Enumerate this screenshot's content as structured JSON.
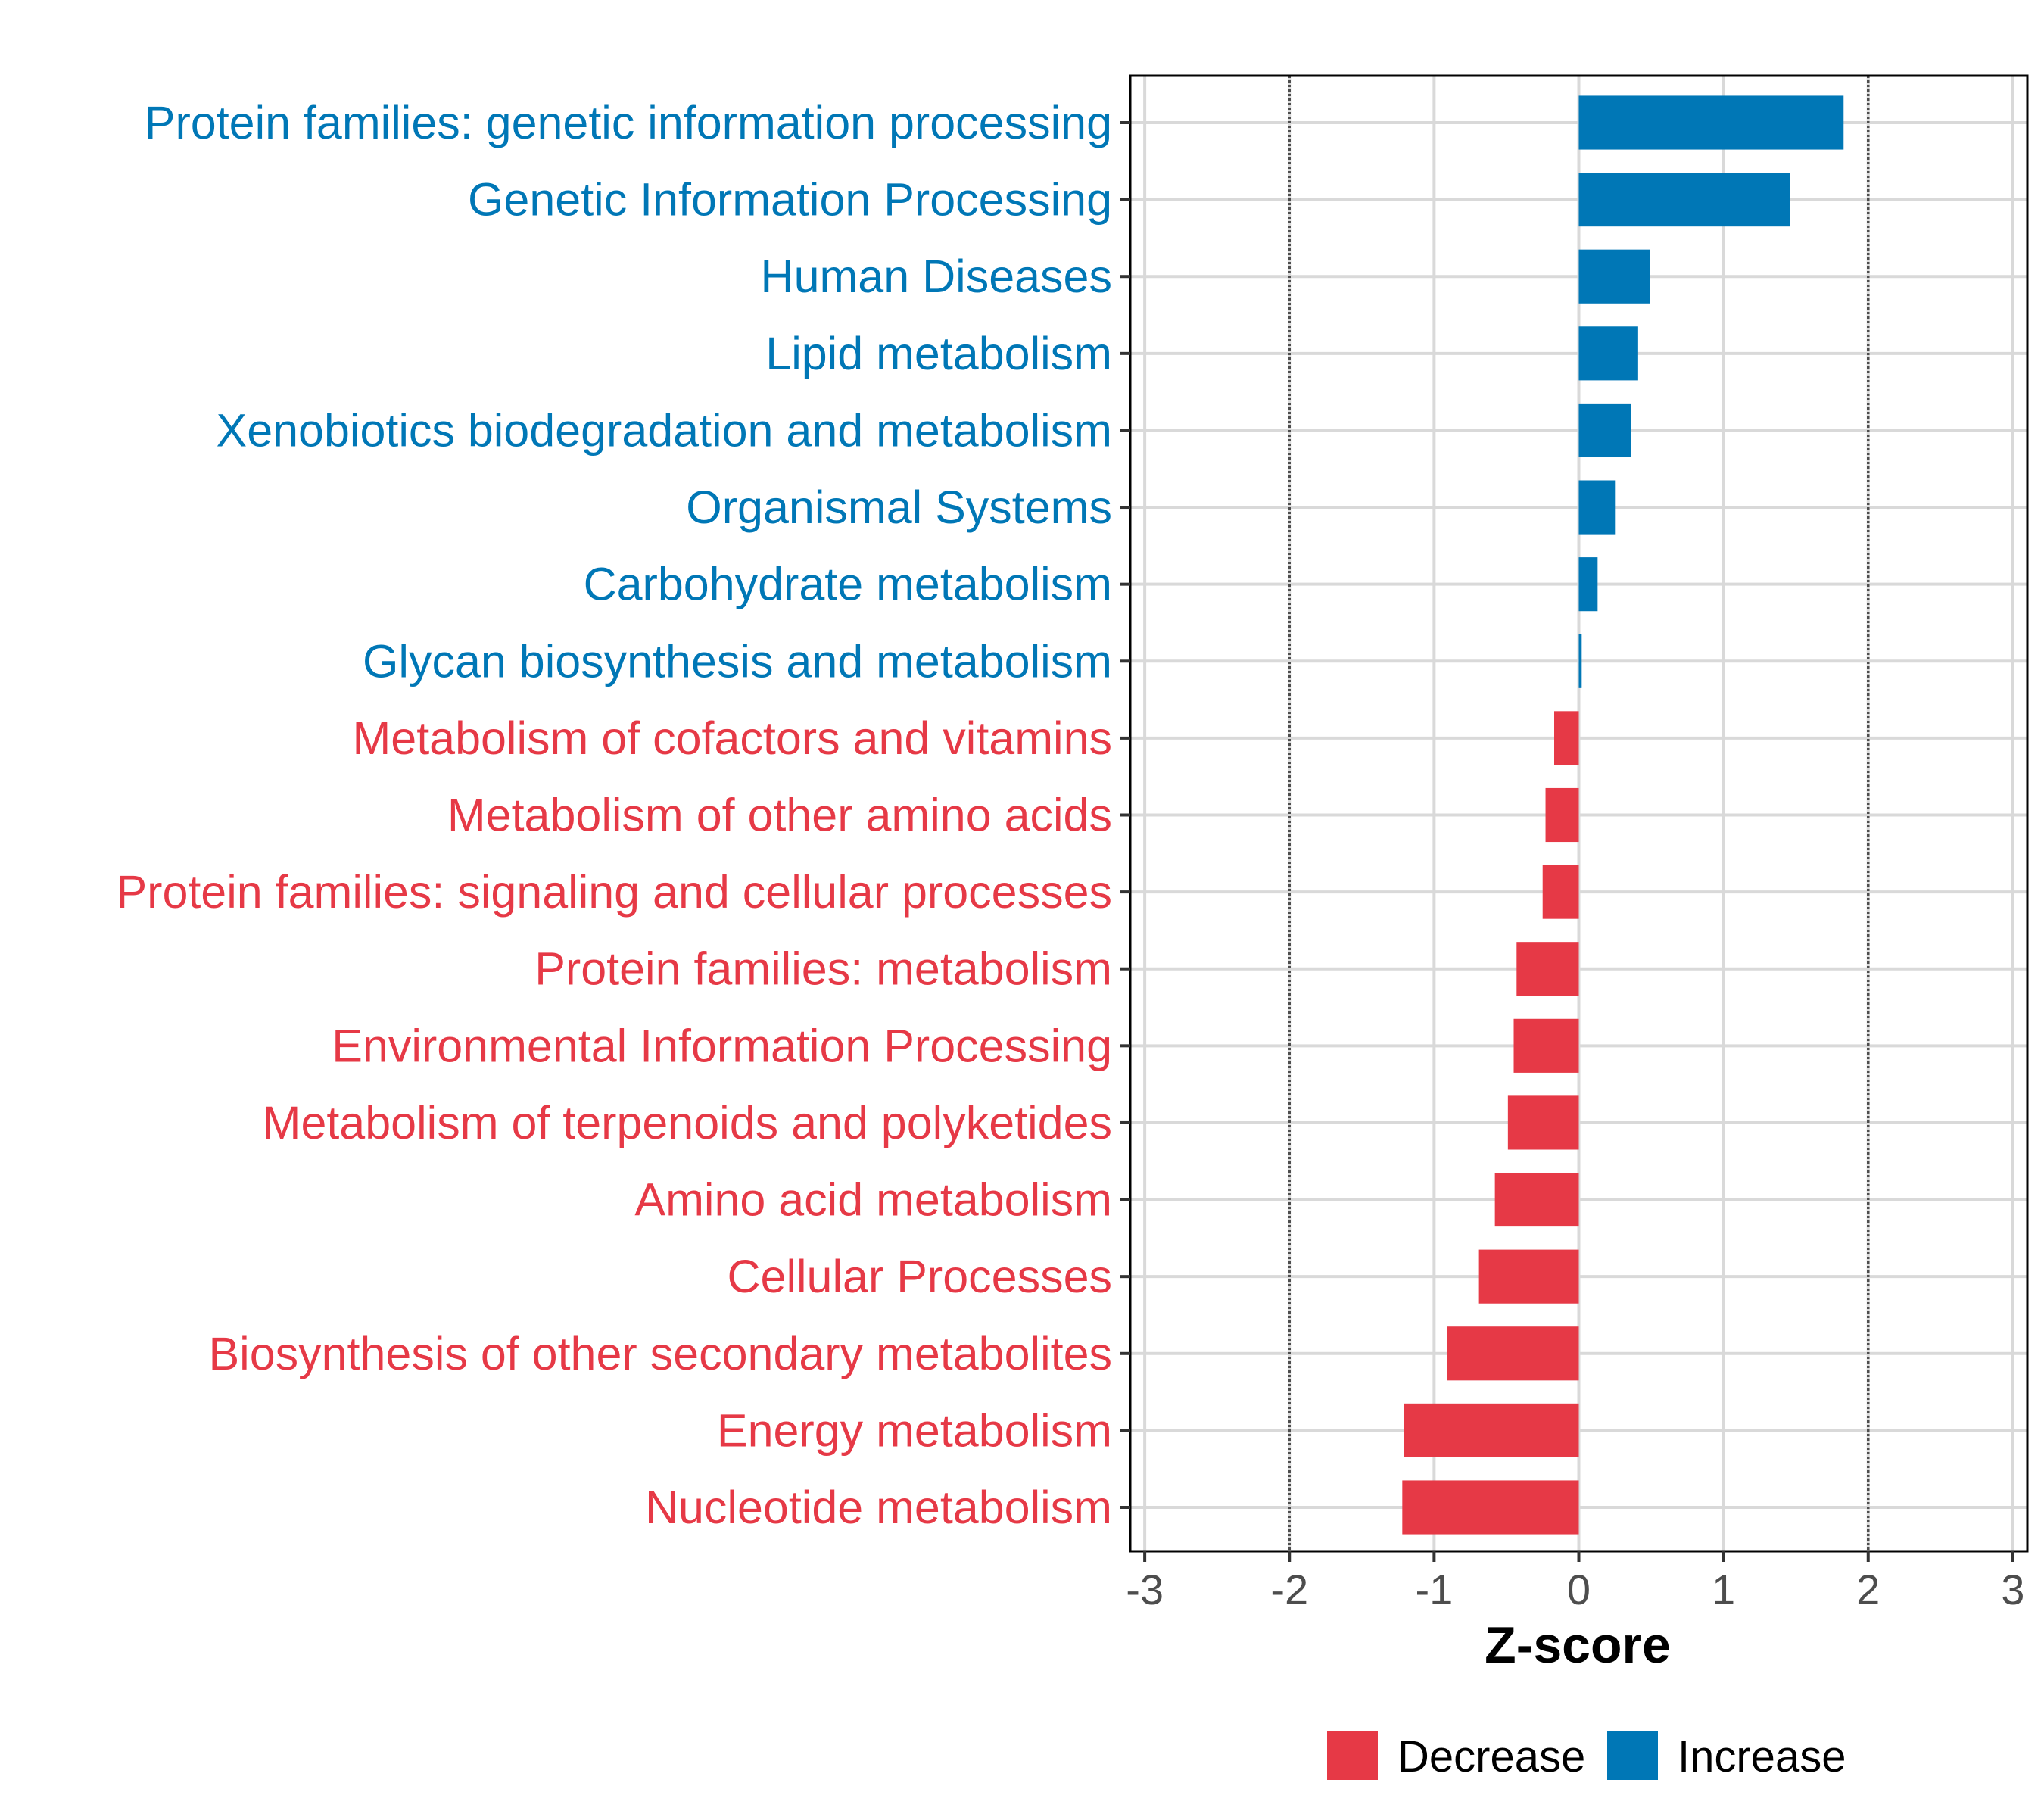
{
  "chart_data": {
    "type": "bar",
    "orientation": "horizontal",
    "title": "",
    "xlabel": "Z-score",
    "ylabel": "",
    "xlim": [
      -3.1,
      3.1
    ],
    "xticks": [
      -3,
      -2,
      -1,
      0,
      1,
      2,
      3
    ],
    "xtick_labels": [
      "-3",
      "-2",
      "-1",
      "0",
      "1",
      "2",
      "3"
    ],
    "reference_lines": [
      -2,
      2
    ],
    "grid": true,
    "legend_position": "bottom",
    "colors": {
      "Decrease": "#E63946",
      "Increase": "#0077B6"
    },
    "legend": [
      {
        "label": "Decrease",
        "color": "#E63946"
      },
      {
        "label": "Increase",
        "color": "#0077B6"
      }
    ],
    "categories": [
      "Protein families: genetic information processing",
      "Genetic Information Processing",
      "Human Diseases",
      "Lipid metabolism",
      "Xenobiotics biodegradation and metabolism",
      "Organismal Systems",
      "Carbohydrate metabolism",
      "Glycan biosynthesis and metabolism",
      "Metabolism of cofactors and vitamins",
      "Metabolism of other amino acids",
      "Protein families: signaling and cellular processes",
      "Protein families: metabolism",
      "Environmental Information Processing",
      "Metabolism of terpenoids and polyketides",
      "Amino acid metabolism",
      "Cellular Processes",
      "Biosynthesis of other secondary metabolites",
      "Energy metabolism",
      "Nucleotide metabolism"
    ],
    "values": [
      1.83,
      1.46,
      0.49,
      0.41,
      0.36,
      0.25,
      0.13,
      0.02,
      -0.17,
      -0.23,
      -0.25,
      -0.43,
      -0.45,
      -0.49,
      -0.58,
      -0.69,
      -0.91,
      -1.21,
      -1.22
    ],
    "groups": [
      "Increase",
      "Increase",
      "Increase",
      "Increase",
      "Increase",
      "Increase",
      "Increase",
      "Increase",
      "Decrease",
      "Decrease",
      "Decrease",
      "Decrease",
      "Decrease",
      "Decrease",
      "Decrease",
      "Decrease",
      "Decrease",
      "Decrease",
      "Decrease"
    ]
  }
}
